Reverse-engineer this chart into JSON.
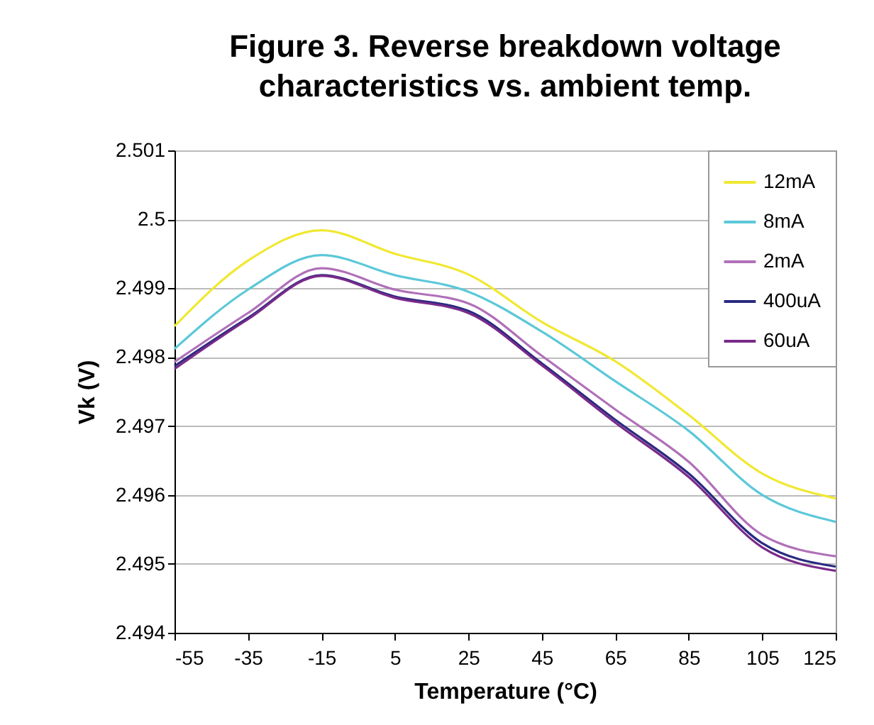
{
  "chart_data": {
    "type": "line",
    "title": "Figure 3. Reverse breakdown voltage characteristics vs. ambient temp.",
    "xlabel": "Temperature (°C)",
    "ylabel": "Vk (V)",
    "x": [
      -55,
      -35,
      -15,
      5,
      25,
      45,
      65,
      85,
      105,
      125
    ],
    "series": [
      {
        "name": "12mA",
        "color": "#f0e830",
        "values": [
          2.49845,
          2.4994,
          2.49984,
          2.4995,
          2.4992,
          2.49851,
          2.49794,
          2.49716,
          2.49631,
          2.49595
        ]
      },
      {
        "name": "8mA",
        "color": "#5bc8d8",
        "values": [
          2.49812,
          2.49898,
          2.49948,
          2.49919,
          2.49895,
          2.49837,
          2.49765,
          2.49693,
          2.496,
          2.49561
        ]
      },
      {
        "name": "2mA",
        "color": "#b070b8",
        "values": [
          2.49793,
          2.49864,
          2.49929,
          2.49898,
          2.49878,
          2.49802,
          2.49724,
          2.49648,
          2.49542,
          2.49511
        ]
      },
      {
        "name": "400uA",
        "color": "#2a2a80",
        "values": [
          2.49787,
          2.49857,
          2.49919,
          2.49888,
          2.49867,
          2.49791,
          2.49709,
          2.49631,
          2.4953,
          2.49496
        ]
      },
      {
        "name": "60uA",
        "color": "#7a2a8a",
        "values": [
          2.49783,
          2.49855,
          2.49918,
          2.49886,
          2.49864,
          2.49788,
          2.49705,
          2.49626,
          2.49524,
          2.4949
        ]
      }
    ],
    "xlim": [
      -55,
      125
    ],
    "xticks": [
      -55,
      -35,
      -15,
      5,
      25,
      45,
      65,
      85,
      105,
      125
    ],
    "ylim": [
      2.494,
      2.501
    ],
    "yticks": [
      2.494,
      2.495,
      2.496,
      2.497,
      2.498,
      2.499,
      2.5,
      2.501
    ],
    "grid": "y",
    "legend": "top right",
    "marker": "none",
    "line_style": "solid"
  }
}
